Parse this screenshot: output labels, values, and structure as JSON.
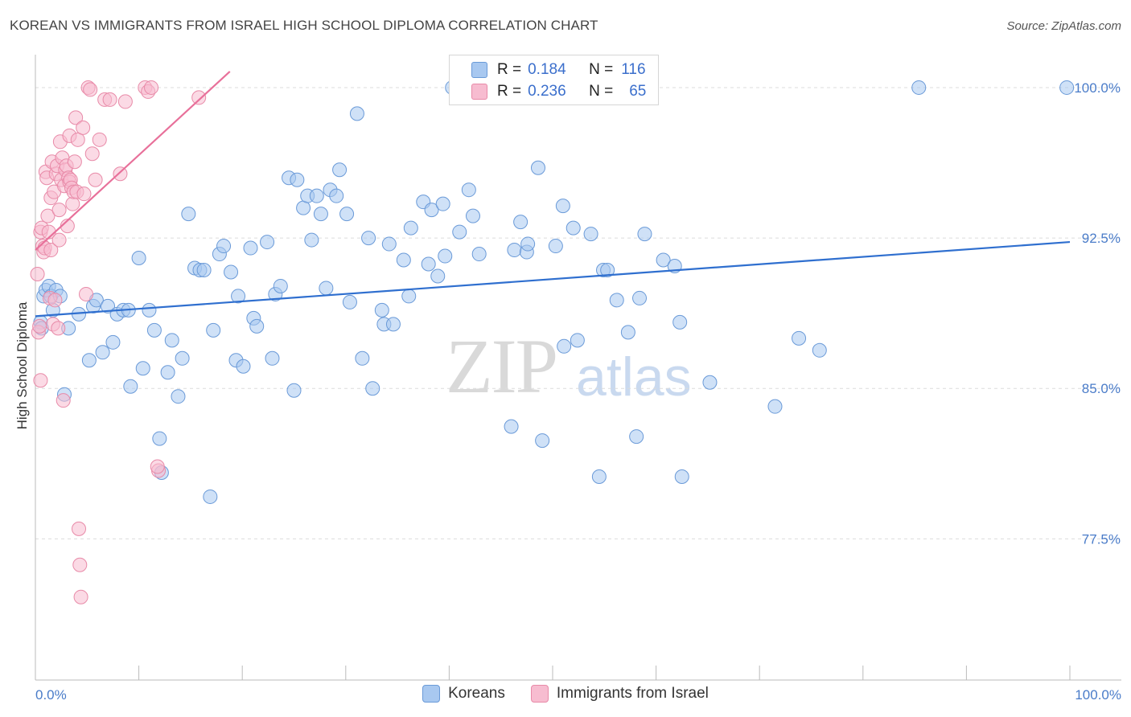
{
  "title": "KOREAN VS IMMIGRANTS FROM ISRAEL HIGH SCHOOL DIPLOMA CORRELATION CHART",
  "source": "Source: ZipAtlas.com",
  "watermark": {
    "zip": "ZIP",
    "atlas": "atlas"
  },
  "legend": {
    "rows": [
      {
        "r_label": "R =",
        "r_value": "0.184",
        "n_label": "N =",
        "n_value": "116",
        "color": "#a8c8f0",
        "edge": "#6a9ad8"
      },
      {
        "r_label": "R =",
        "r_value": "0.236",
        "n_label": "N =",
        "n_value": "65",
        "color": "#f7bcd0",
        "edge": "#e88aa8"
      }
    ]
  },
  "bottom_legend": [
    {
      "label": "Koreans",
      "color": "#a8c8f0",
      "edge": "#6a9ad8"
    },
    {
      "label": "Immigrants from Israel",
      "color": "#f7bcd0",
      "edge": "#e88aa8"
    }
  ],
  "chart_data": {
    "type": "scatter",
    "title": "KOREAN VS IMMIGRANTS FROM ISRAEL HIGH SCHOOL DIPLOMA CORRELATION CHART",
    "xlabel": "",
    "ylabel": "High School Diploma",
    "xlim": [
      0,
      100
    ],
    "ylim": [
      70.5,
      101.2
    ],
    "x_tick_labels": [
      "0.0%",
      "100.0%"
    ],
    "y_ticks": [
      77.5,
      85.0,
      92.5,
      100.0
    ],
    "y_tick_labels": [
      "77.5%",
      "85.0%",
      "92.5%",
      "100.0%"
    ],
    "grid": "horizontal dashed",
    "series": [
      {
        "name": "Koreans",
        "color": "#a8c8f0",
        "edge": "#6a9ad8",
        "trend": {
          "x": [
            0,
            100
          ],
          "y": [
            88.6,
            92.3
          ],
          "color": "#2f6fcf"
        },
        "points": [
          [
            0.5,
            88.3
          ],
          [
            0.6,
            88.0
          ],
          [
            0.8,
            89.6
          ],
          [
            1.0,
            89.9
          ],
          [
            1.3,
            90.1
          ],
          [
            1.5,
            89.6
          ],
          [
            1.7,
            88.9
          ],
          [
            2.0,
            89.9
          ],
          [
            2.4,
            89.6
          ],
          [
            2.8,
            84.7
          ],
          [
            3.2,
            88.0
          ],
          [
            4.2,
            88.7
          ],
          [
            5.2,
            86.4
          ],
          [
            5.6,
            89.1
          ],
          [
            5.9,
            89.4
          ],
          [
            6.5,
            86.8
          ],
          [
            7.0,
            89.1
          ],
          [
            7.5,
            87.3
          ],
          [
            7.9,
            88.7
          ],
          [
            8.5,
            88.9
          ],
          [
            9.0,
            88.9
          ],
          [
            9.2,
            85.1
          ],
          [
            10.0,
            91.5
          ],
          [
            10.4,
            86.0
          ],
          [
            11.0,
            88.9
          ],
          [
            11.5,
            87.9
          ],
          [
            12.0,
            82.5
          ],
          [
            12.2,
            80.8
          ],
          [
            12.8,
            85.8
          ],
          [
            13.2,
            87.4
          ],
          [
            13.8,
            84.6
          ],
          [
            14.2,
            86.5
          ],
          [
            14.8,
            93.7
          ],
          [
            15.4,
            91.0
          ],
          [
            15.9,
            90.9
          ],
          [
            16.3,
            90.9
          ],
          [
            16.9,
            79.6
          ],
          [
            17.2,
            87.9
          ],
          [
            17.8,
            91.7
          ],
          [
            18.2,
            92.1
          ],
          [
            18.9,
            90.8
          ],
          [
            19.4,
            86.4
          ],
          [
            19.6,
            89.6
          ],
          [
            20.1,
            86.1
          ],
          [
            20.8,
            92.0
          ],
          [
            21.1,
            88.5
          ],
          [
            21.4,
            88.1
          ],
          [
            22.4,
            92.3
          ],
          [
            22.9,
            86.5
          ],
          [
            23.2,
            89.7
          ],
          [
            23.7,
            90.1
          ],
          [
            24.5,
            95.5
          ],
          [
            25.0,
            84.9
          ],
          [
            25.3,
            95.4
          ],
          [
            25.9,
            94.0
          ],
          [
            26.3,
            94.6
          ],
          [
            26.7,
            92.4
          ],
          [
            27.2,
            94.6
          ],
          [
            27.6,
            93.7
          ],
          [
            28.1,
            90.0
          ],
          [
            28.5,
            94.9
          ],
          [
            29.1,
            94.6
          ],
          [
            29.4,
            95.9
          ],
          [
            30.1,
            93.7
          ],
          [
            30.4,
            89.3
          ],
          [
            31.1,
            98.7
          ],
          [
            31.6,
            86.5
          ],
          [
            32.2,
            92.5
          ],
          [
            32.6,
            85.0
          ],
          [
            33.5,
            88.9
          ],
          [
            33.7,
            88.2
          ],
          [
            34.2,
            92.2
          ],
          [
            34.6,
            88.2
          ],
          [
            35.6,
            91.4
          ],
          [
            36.1,
            89.6
          ],
          [
            36.3,
            93.0
          ],
          [
            37.5,
            94.3
          ],
          [
            38.0,
            91.2
          ],
          [
            38.3,
            93.9
          ],
          [
            38.9,
            90.6
          ],
          [
            39.4,
            94.2
          ],
          [
            39.6,
            91.6
          ],
          [
            40.3,
            100.0
          ],
          [
            41.0,
            92.8
          ],
          [
            41.9,
            94.9
          ],
          [
            42.3,
            93.6
          ],
          [
            42.9,
            91.7
          ],
          [
            46.0,
            83.1
          ],
          [
            46.3,
            91.9
          ],
          [
            46.9,
            93.3
          ],
          [
            47.5,
            91.8
          ],
          [
            47.6,
            92.2
          ],
          [
            48.6,
            96.0
          ],
          [
            49.0,
            82.4
          ],
          [
            50.3,
            92.1
          ],
          [
            51.0,
            94.1
          ],
          [
            51.1,
            87.1
          ],
          [
            52.0,
            93.0
          ],
          [
            52.4,
            87.4
          ],
          [
            53.7,
            92.7
          ],
          [
            54.5,
            80.6
          ],
          [
            54.9,
            90.9
          ],
          [
            55.3,
            90.9
          ],
          [
            56.2,
            89.4
          ],
          [
            57.3,
            87.8
          ],
          [
            58.1,
            82.6
          ],
          [
            58.4,
            89.5
          ],
          [
            58.9,
            92.7
          ],
          [
            60.7,
            91.4
          ],
          [
            61.8,
            91.1
          ],
          [
            62.3,
            88.3
          ],
          [
            62.5,
            80.6
          ],
          [
            65.2,
            85.3
          ],
          [
            71.5,
            84.1
          ],
          [
            73.8,
            87.5
          ],
          [
            75.8,
            86.9
          ],
          [
            85.4,
            100.0
          ],
          [
            99.7,
            100.0
          ]
        ]
      },
      {
        "name": "Immigrants from Israel",
        "color": "#f7bcd0",
        "edge": "#e88aa8",
        "trend": {
          "x": [
            0,
            18.8
          ],
          "y": [
            91.9,
            100.8
          ],
          "color": "#e8709a"
        },
        "points": [
          [
            0.2,
            90.7
          ],
          [
            0.3,
            87.8
          ],
          [
            0.4,
            88.1
          ],
          [
            0.5,
            85.4
          ],
          [
            0.5,
            92.8
          ],
          [
            0.6,
            93.0
          ],
          [
            0.7,
            92.1
          ],
          [
            0.8,
            91.8
          ],
          [
            0.9,
            92.0
          ],
          [
            1.0,
            95.8
          ],
          [
            1.1,
            95.5
          ],
          [
            1.2,
            93.6
          ],
          [
            1.3,
            92.8
          ],
          [
            1.4,
            89.5
          ],
          [
            1.5,
            91.9
          ],
          [
            1.5,
            94.5
          ],
          [
            1.6,
            96.3
          ],
          [
            1.7,
            88.2
          ],
          [
            1.8,
            94.8
          ],
          [
            1.9,
            89.4
          ],
          [
            2.0,
            95.7
          ],
          [
            2.1,
            96.1
          ],
          [
            2.2,
            88.0
          ],
          [
            2.3,
            92.4
          ],
          [
            2.3,
            93.9
          ],
          [
            2.4,
            97.3
          ],
          [
            2.5,
            95.4
          ],
          [
            2.6,
            96.5
          ],
          [
            2.7,
            84.4
          ],
          [
            2.8,
            95.1
          ],
          [
            2.9,
            95.9
          ],
          [
            3.0,
            96.1
          ],
          [
            3.1,
            93.1
          ],
          [
            3.2,
            95.5
          ],
          [
            3.3,
            97.6
          ],
          [
            3.3,
            95.3
          ],
          [
            3.4,
            95.4
          ],
          [
            3.5,
            95.0
          ],
          [
            3.6,
            94.2
          ],
          [
            3.7,
            94.8
          ],
          [
            3.8,
            96.3
          ],
          [
            3.9,
            98.5
          ],
          [
            4.0,
            94.8
          ],
          [
            4.1,
            97.4
          ],
          [
            4.2,
            78.0
          ],
          [
            4.3,
            76.2
          ],
          [
            4.4,
            74.6
          ],
          [
            4.6,
            98.0
          ],
          [
            4.7,
            94.7
          ],
          [
            4.9,
            89.7
          ],
          [
            5.1,
            100.0
          ],
          [
            5.3,
            99.9
          ],
          [
            5.5,
            96.7
          ],
          [
            5.8,
            95.4
          ],
          [
            6.2,
            97.4
          ],
          [
            6.7,
            99.4
          ],
          [
            7.2,
            99.4
          ],
          [
            8.2,
            95.7
          ],
          [
            8.7,
            99.3
          ],
          [
            10.6,
            100.0
          ],
          [
            10.9,
            99.8
          ],
          [
            11.2,
            100.0
          ],
          [
            11.9,
            80.9
          ],
          [
            11.8,
            81.1
          ],
          [
            15.8,
            99.5
          ]
        ]
      }
    ]
  }
}
